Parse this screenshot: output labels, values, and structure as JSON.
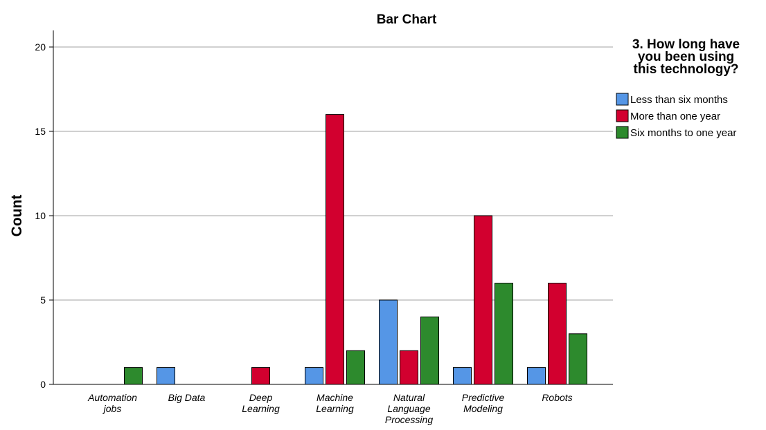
{
  "chart_data": {
    "type": "bar",
    "title": "Bar Chart",
    "xlabel": "",
    "ylabel": "Count",
    "ylim": [
      0,
      21
    ],
    "yticks": [
      0,
      5,
      10,
      15,
      20
    ],
    "grid": true,
    "legend_placement": "right",
    "legend_title_lines": [
      "3. How long have",
      "you  been using",
      "this technology?"
    ],
    "categories": [
      [
        "Automation",
        "jobs"
      ],
      [
        "Big Data"
      ],
      [
        "Deep",
        "Learning"
      ],
      [
        "Machine",
        "Learning"
      ],
      [
        "Natural",
        "Language",
        "Processing"
      ],
      [
        "Predictive",
        "Modeling"
      ],
      [
        "Robots"
      ]
    ],
    "series": [
      {
        "name": "Less than six months",
        "color": "#5596e6",
        "values": [
          0,
          1,
          0,
          1,
          5,
          1,
          1
        ]
      },
      {
        "name": "More than one year",
        "color": "#d2002f",
        "values": [
          0,
          0,
          1,
          16,
          2,
          10,
          6
        ]
      },
      {
        "name": "Six months to one year",
        "color": "#2d8a2d",
        "values": [
          1,
          0,
          0,
          2,
          4,
          6,
          3
        ]
      }
    ]
  }
}
